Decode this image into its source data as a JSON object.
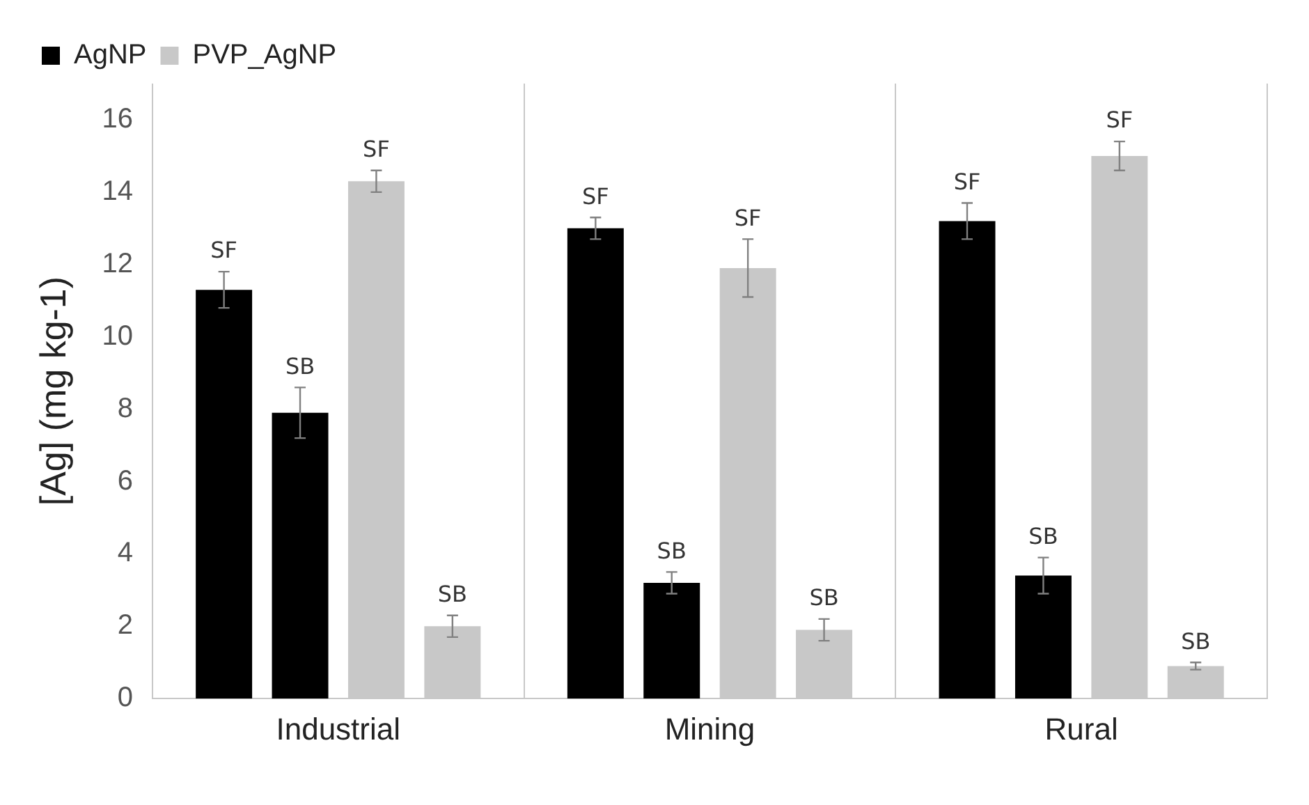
{
  "chart_data": {
    "type": "bar",
    "ylabel": "[Ag] (mg kg-1)",
    "categories": [
      "Industrial",
      "Mining",
      "Rural"
    ],
    "series": [
      {
        "name": "AgNP",
        "color": "#000000",
        "values": [
          11.3,
          13.0,
          13.2
        ],
        "errors": [
          0.5,
          0.3,
          0.5
        ],
        "value_labels": [
          "SF",
          "SF",
          "SF"
        ]
      },
      {
        "color": "#000000",
        "values": [
          7.9,
          3.2,
          3.4
        ],
        "errors": [
          0.7,
          0.3,
          0.5
        ],
        "value_labels": [
          "SB",
          "SB",
          "SB"
        ]
      },
      {
        "name": "PVP_AgNP",
        "color": "#c8c8c8",
        "values": [
          14.3,
          11.9,
          15.0
        ],
        "errors": [
          0.3,
          0.8,
          0.4
        ],
        "value_labels": [
          "SF",
          "SF",
          "SF"
        ]
      },
      {
        "color": "#c8c8c8",
        "values": [
          2.0,
          1.9,
          0.9
        ],
        "errors": [
          0.3,
          0.3,
          0.1
        ],
        "value_labels": [
          "SB",
          "SB",
          "SB"
        ]
      }
    ],
    "ylim": [
      0,
      17
    ],
    "yticks": [
      0,
      2,
      4,
      6,
      8,
      10,
      12,
      14,
      16
    ],
    "grid": "x",
    "legend": "top left"
  }
}
